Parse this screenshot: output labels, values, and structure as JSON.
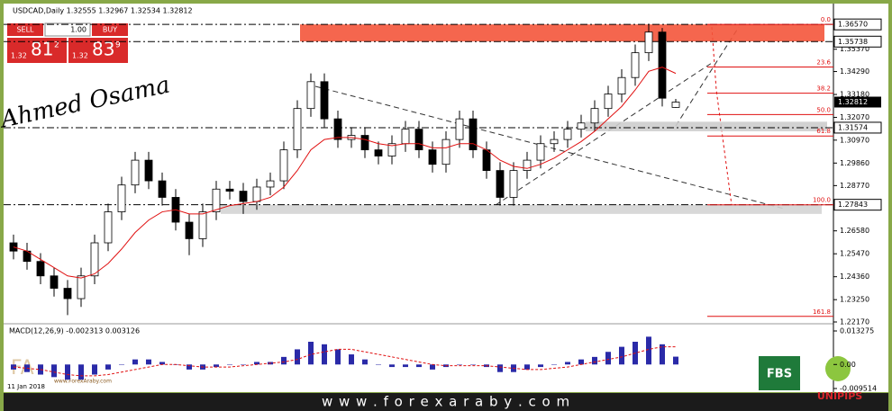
{
  "chart_data": {
    "type": "candlestick",
    "title": "USDCAD,Daily  1.32555 1.32967 1.32534 1.32812",
    "open": [
      1.26,
      1.256,
      1.251,
      1.244,
      1.238,
      1.233,
      1.244,
      1.26,
      1.275,
      1.288,
      1.3,
      1.29,
      1.282,
      1.27,
      1.262,
      1.275,
      1.286,
      1.285,
      1.28,
      1.287,
      1.29,
      1.305,
      1.325,
      1.338,
      1.32,
      1.31,
      1.312,
      1.305,
      1.302,
      1.308,
      1.315,
      1.305,
      1.298,
      1.31,
      1.32,
      1.305,
      1.295,
      1.282,
      1.295,
      1.3,
      1.308,
      1.31,
      1.315,
      1.318,
      1.325,
      1.332,
      1.34,
      1.352,
      1.362,
      1.32555
    ],
    "high": [
      1.264,
      1.26,
      1.255,
      1.248,
      1.242,
      1.248,
      1.264,
      1.279,
      1.292,
      1.304,
      1.304,
      1.294,
      1.286,
      1.274,
      1.279,
      1.29,
      1.29,
      1.289,
      1.291,
      1.294,
      1.309,
      1.329,
      1.342,
      1.342,
      1.324,
      1.316,
      1.316,
      1.309,
      1.312,
      1.319,
      1.319,
      1.309,
      1.314,
      1.324,
      1.324,
      1.309,
      1.299,
      1.299,
      1.304,
      1.312,
      1.314,
      1.319,
      1.322,
      1.329,
      1.336,
      1.344,
      1.356,
      1.366,
      1.364,
      1.32967
    ],
    "low": [
      1.252,
      1.247,
      1.24,
      1.234,
      1.225,
      1.229,
      1.24,
      1.256,
      1.271,
      1.284,
      1.286,
      1.278,
      1.266,
      1.254,
      1.258,
      1.271,
      1.281,
      1.274,
      1.276,
      1.283,
      1.286,
      1.301,
      1.321,
      1.316,
      1.306,
      1.306,
      1.301,
      1.298,
      1.298,
      1.304,
      1.301,
      1.294,
      1.294,
      1.306,
      1.301,
      1.291,
      1.278,
      1.278,
      1.291,
      1.296,
      1.304,
      1.306,
      1.311,
      1.314,
      1.321,
      1.328,
      1.336,
      1.348,
      1.326,
      1.32534
    ],
    "close": [
      1.256,
      1.251,
      1.244,
      1.238,
      1.233,
      1.244,
      1.26,
      1.275,
      1.288,
      1.3,
      1.29,
      1.282,
      1.27,
      1.262,
      1.275,
      1.286,
      1.285,
      1.28,
      1.287,
      1.29,
      1.305,
      1.325,
      1.338,
      1.32,
      1.31,
      1.312,
      1.305,
      1.302,
      1.308,
      1.315,
      1.305,
      1.298,
      1.31,
      1.32,
      1.305,
      1.295,
      1.282,
      1.295,
      1.3,
      1.308,
      1.31,
      1.315,
      1.318,
      1.325,
      1.332,
      1.34,
      1.352,
      1.362,
      1.33,
      1.32812
    ],
    "moving_average": {
      "color": "#e01010",
      "values": [
        1.258,
        1.256,
        1.252,
        1.248,
        1.244,
        1.243,
        1.245,
        1.25,
        1.257,
        1.265,
        1.271,
        1.275,
        1.276,
        1.274,
        1.274,
        1.276,
        1.278,
        1.279,
        1.28,
        1.282,
        1.287,
        1.295,
        1.305,
        1.31,
        1.311,
        1.311,
        1.31,
        1.308,
        1.307,
        1.308,
        1.308,
        1.306,
        1.306,
        1.308,
        1.308,
        1.305,
        1.3,
        1.297,
        1.296,
        1.298,
        1.301,
        1.305,
        1.309,
        1.314,
        1.32,
        1.326,
        1.334,
        1.343,
        1.345,
        1.342
      ]
    },
    "ylim": [
      1.2217,
      1.3723
    ],
    "yticks": [
      {
        "value": 1.3537,
        "label": "1.35370"
      },
      {
        "value": 1.3429,
        "label": "1.34290"
      },
      {
        "value": 1.3318,
        "label": "1.33180"
      },
      {
        "value": 1.3207,
        "label": "1.32070"
      },
      {
        "value": 1.3097,
        "label": "1.30970"
      },
      {
        "value": 1.2986,
        "label": "1.29860"
      },
      {
        "value": 1.2877,
        "label": "1.28770"
      },
      {
        "value": 1.2658,
        "label": "1.26580"
      },
      {
        "value": 1.2547,
        "label": "1.25470"
      },
      {
        "value": 1.2436,
        "label": "1.24360"
      },
      {
        "value": 1.2325,
        "label": "1.23250"
      },
      {
        "value": 1.2217,
        "label": "1.22170"
      }
    ],
    "marked_levels": [
      {
        "value": 1.3657,
        "label": "1.36570"
      },
      1.35738,
      1.31574,
      1.27843
    ],
    "zones": [
      {
        "top": 1.3657,
        "bottom": 1.3575,
        "color": "#f4553b"
      },
      {
        "top": 1.3186,
        "bottom": 1.314,
        "color": "#cdcdcd"
      },
      {
        "top": 1.2784,
        "bottom": 1.274,
        "color": "#d4d4d4"
      }
    ],
    "fibonacci": {
      "color": "#e01010",
      "levels": [
        {
          "label": "0.0",
          "price": 1.3657
        },
        {
          "label": "23.6",
          "price": 1.3451
        },
        {
          "label": "38.2",
          "price": 1.3324
        },
        {
          "label": "50.0",
          "price": 1.3221
        },
        {
          "label": "61.8",
          "price": 1.3117
        },
        {
          "label": "100.0",
          "price": 1.2784
        },
        {
          "label": "161.8",
          "price": 1.2244
        }
      ]
    },
    "date_label": "11 Jan 2018",
    "macd": {
      "title": "MACD(12,26,9) -0.002313 0.003126",
      "histogram_color": "#2a2aa8",
      "signal_color": "#e01010",
      "histogram": [
        -0.002,
        -0.003,
        -0.004,
        -0.005,
        -0.006,
        -0.006,
        -0.004,
        -0.002,
        0.0,
        0.002,
        0.002,
        0.001,
        0.0,
        -0.002,
        -0.002,
        -0.001,
        0.0,
        0.0,
        0.001,
        0.001,
        0.003,
        0.006,
        0.009,
        0.008,
        0.006,
        0.004,
        0.002,
        0.0,
        -0.001,
        -0.001,
        -0.001,
        -0.002,
        -0.001,
        0.0,
        0.0,
        -0.001,
        -0.003,
        -0.003,
        -0.002,
        -0.001,
        0.0,
        0.001,
        0.002,
        0.003,
        0.005,
        0.007,
        0.009,
        0.011,
        0.008,
        0.0031
      ],
      "signal": [
        -0.001,
        -0.0015,
        -0.002,
        -0.003,
        -0.004,
        -0.0045,
        -0.0045,
        -0.004,
        -0.003,
        -0.002,
        -0.001,
        0.0,
        0.0,
        -0.0005,
        -0.001,
        -0.001,
        -0.001,
        -0.0005,
        0.0,
        0.0005,
        0.001,
        0.002,
        0.004,
        0.005,
        0.006,
        0.006,
        0.005,
        0.004,
        0.003,
        0.002,
        0.001,
        0.0,
        -0.0005,
        -0.0005,
        -0.0005,
        -0.0005,
        -0.001,
        -0.0015,
        -0.002,
        -0.002,
        -0.0015,
        -0.001,
        0.0,
        0.001,
        0.002,
        0.003,
        0.0045,
        0.006,
        0.007,
        0.007
      ],
      "ylim": [
        -0.009514,
        0.013275
      ],
      "yticks": [
        0.013275,
        {
          "value": 0,
          "label": "0.00"
        },
        -0.009514
      ]
    }
  },
  "trade_panel": {
    "sell": "SELL",
    "lot": "1.00",
    "buy": "BUY",
    "sell_big": "1.32",
    "sell_pips": "81",
    "sell_frac": "2",
    "buy_big": "1.32",
    "buy_pips": "83",
    "buy_frac": "9"
  },
  "watermark": {
    "author": "Ahmed Osama",
    "site": "www.ForexAraby.com"
  },
  "footer": {
    "url": "w w w . f o r e x a r a b y . c o m",
    "logo1": "FBS",
    "logo2": "UNIPIPS"
  }
}
